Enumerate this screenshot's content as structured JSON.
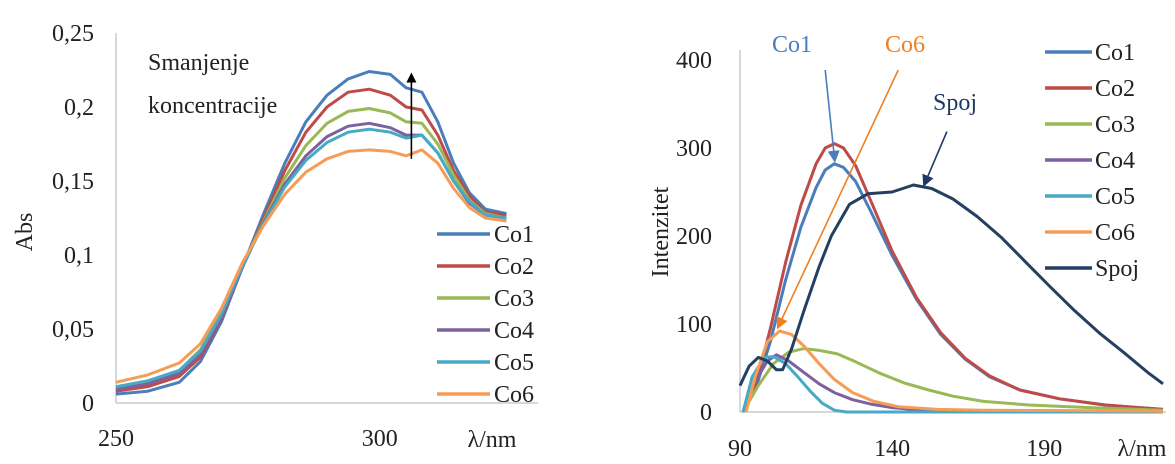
{
  "chart_data": [
    {
      "type": "line",
      "title": "",
      "xlabel": "λ/nm",
      "ylabel": "Abs",
      "xlim": [
        250,
        330
      ],
      "ylim": [
        0,
        0.25
      ],
      "x_ticks": [
        250,
        300
      ],
      "x_tick_labels": [
        "250",
        "300"
      ],
      "y_ticks": [
        0,
        0.05,
        0.1,
        0.15,
        0.2,
        0.25
      ],
      "y_tick_labels": [
        "0",
        "0,05",
        "0,1",
        "0,15",
        "0,2",
        "0,25"
      ],
      "grid": false,
      "legend": "bottom-right",
      "annotations": [
        {
          "text": "Smanjenje"
        },
        {
          "text": "koncentracije"
        }
      ],
      "arrow": {
        "x": 306,
        "y_from": 0.165,
        "y_to": 0.224
      },
      "series": [
        {
          "name": "Co1",
          "color": "#4a7ebb",
          "points": [
            [
              250,
              0.006
            ],
            [
              256,
              0.008
            ],
            [
              262,
              0.014
            ],
            [
              266,
              0.028
            ],
            [
              270,
              0.055
            ],
            [
              274,
              0.092
            ],
            [
              278,
              0.128
            ],
            [
              282,
              0.162
            ],
            [
              286,
              0.19
            ],
            [
              290,
              0.208
            ],
            [
              294,
              0.219
            ],
            [
              298,
              0.224
            ],
            [
              302,
              0.222
            ],
            [
              305,
              0.213
            ],
            [
              308,
              0.21
            ],
            [
              311,
              0.19
            ],
            [
              314,
              0.162
            ],
            [
              317,
              0.142
            ],
            [
              320,
              0.131
            ],
            [
              324,
              0.128
            ]
          ]
        },
        {
          "name": "Co2",
          "color": "#be4b48",
          "points": [
            [
              250,
              0.008
            ],
            [
              256,
              0.011
            ],
            [
              262,
              0.018
            ],
            [
              266,
              0.031
            ],
            [
              270,
              0.057
            ],
            [
              274,
              0.092
            ],
            [
              278,
              0.125
            ],
            [
              282,
              0.157
            ],
            [
              286,
              0.183
            ],
            [
              290,
              0.2
            ],
            [
              294,
              0.21
            ],
            [
              298,
              0.212
            ],
            [
              302,
              0.208
            ],
            [
              305,
              0.2
            ],
            [
              308,
              0.198
            ],
            [
              311,
              0.181
            ],
            [
              314,
              0.157
            ],
            [
              317,
              0.14
            ],
            [
              320,
              0.129
            ],
            [
              324,
              0.127
            ]
          ]
        },
        {
          "name": "Co3",
          "color": "#98b954",
          "points": [
            [
              250,
              0.01
            ],
            [
              256,
              0.014
            ],
            [
              262,
              0.022
            ],
            [
              266,
              0.036
            ],
            [
              270,
              0.061
            ],
            [
              274,
              0.093
            ],
            [
              278,
              0.123
            ],
            [
              282,
              0.152
            ],
            [
              286,
              0.174
            ],
            [
              290,
              0.189
            ],
            [
              294,
              0.197
            ],
            [
              298,
              0.199
            ],
            [
              302,
              0.196
            ],
            [
              305,
              0.19
            ],
            [
              308,
              0.189
            ],
            [
              311,
              0.175
            ],
            [
              314,
              0.154
            ],
            [
              317,
              0.137
            ],
            [
              320,
              0.128
            ],
            [
              324,
              0.125
            ]
          ]
        },
        {
          "name": "Co4",
          "color": "#7d60a0",
          "points": [
            [
              250,
              0.009
            ],
            [
              256,
              0.013
            ],
            [
              262,
              0.02
            ],
            [
              266,
              0.033
            ],
            [
              270,
              0.058
            ],
            [
              274,
              0.092
            ],
            [
              278,
              0.122
            ],
            [
              282,
              0.148
            ],
            [
              286,
              0.167
            ],
            [
              290,
              0.18
            ],
            [
              294,
              0.187
            ],
            [
              298,
              0.189
            ],
            [
              302,
              0.186
            ],
            [
              305,
              0.181
            ],
            [
              308,
              0.181
            ],
            [
              311,
              0.169
            ],
            [
              314,
              0.15
            ],
            [
              317,
              0.135
            ],
            [
              320,
              0.127
            ],
            [
              324,
              0.125
            ]
          ]
        },
        {
          "name": "Co5",
          "color": "#46aac5",
          "points": [
            [
              250,
              0.011
            ],
            [
              256,
              0.015
            ],
            [
              262,
              0.022
            ],
            [
              266,
              0.035
            ],
            [
              270,
              0.06
            ],
            [
              274,
              0.093
            ],
            [
              278,
              0.121
            ],
            [
              282,
              0.146
            ],
            [
              286,
              0.164
            ],
            [
              290,
              0.176
            ],
            [
              294,
              0.183
            ],
            [
              298,
              0.185
            ],
            [
              302,
              0.183
            ],
            [
              305,
              0.179
            ],
            [
              308,
              0.181
            ],
            [
              311,
              0.169
            ],
            [
              314,
              0.15
            ],
            [
              317,
              0.136
            ],
            [
              320,
              0.127
            ],
            [
              324,
              0.125
            ]
          ]
        },
        {
          "name": "Co6",
          "color": "#f59d56",
          "points": [
            [
              250,
              0.014
            ],
            [
              256,
              0.019
            ],
            [
              262,
              0.027
            ],
            [
              266,
              0.04
            ],
            [
              270,
              0.064
            ],
            [
              274,
              0.095
            ],
            [
              278,
              0.12
            ],
            [
              282,
              0.141
            ],
            [
              286,
              0.156
            ],
            [
              290,
              0.165
            ],
            [
              294,
              0.17
            ],
            [
              298,
              0.171
            ],
            [
              302,
              0.17
            ],
            [
              305,
              0.167
            ],
            [
              308,
              0.171
            ],
            [
              311,
              0.162
            ],
            [
              314,
              0.145
            ],
            [
              317,
              0.132
            ],
            [
              320,
              0.125
            ],
            [
              324,
              0.123
            ]
          ]
        }
      ]
    },
    {
      "type": "line",
      "title": "",
      "xlabel": "λ/nm",
      "ylabel": "Intenzitet",
      "xlim": [
        90,
        230
      ],
      "ylim": [
        0,
        400
      ],
      "x_ticks": [
        90,
        140,
        190
      ],
      "x_tick_labels": [
        "90",
        "140",
        "190"
      ],
      "y_ticks": [
        0,
        100,
        200,
        300,
        400
      ],
      "y_tick_labels": [
        "0",
        "100",
        "200",
        "300",
        "400"
      ],
      "grid": false,
      "legend": "right",
      "annotations": [
        {
          "text": "Co1",
          "color": "#4a7ebb",
          "arrow_from": [
            118,
            400
          ],
          "arrow_to": [
            121,
            290
          ]
        },
        {
          "text": "Co6",
          "color": "#f07f22",
          "arrow_from": [
            142,
            400
          ],
          "arrow_to": [
            103,
            100
          ]
        },
        {
          "text": "Spoj",
          "color": "#1f3864",
          "arrow_from": [
            158,
            330
          ],
          "arrow_to": [
            151,
            262
          ]
        }
      ],
      "series": [
        {
          "name": "Co1",
          "color": "#4a7ebb",
          "points": [
            [
              91,
              0
            ],
            [
              95,
              25
            ],
            [
              100,
              80
            ],
            [
              105,
              150
            ],
            [
              110,
              210
            ],
            [
              115,
              255
            ],
            [
              118,
              275
            ],
            [
              121,
              282
            ],
            [
              124,
              278
            ],
            [
              128,
              262
            ],
            [
              133,
              228
            ],
            [
              140,
              178
            ],
            [
              148,
              128
            ],
            [
              156,
              88
            ],
            [
              164,
              60
            ],
            [
              172,
              40
            ],
            [
              182,
              25
            ],
            [
              195,
              15
            ],
            [
              210,
              8
            ],
            [
              229,
              3
            ]
          ]
        },
        {
          "name": "Co2",
          "color": "#be4b48",
          "points": [
            [
              91,
              0
            ],
            [
              95,
              28
            ],
            [
              100,
              95
            ],
            [
              105,
              170
            ],
            [
              110,
              235
            ],
            [
              115,
              282
            ],
            [
              118,
              300
            ],
            [
              121,
              305
            ],
            [
              124,
              300
            ],
            [
              128,
              280
            ],
            [
              133,
              240
            ],
            [
              140,
              183
            ],
            [
              148,
              130
            ],
            [
              156,
              90
            ],
            [
              164,
              61
            ],
            [
              172,
              41
            ],
            [
              182,
              25
            ],
            [
              195,
              15
            ],
            [
              210,
              8
            ],
            [
              229,
              3
            ]
          ]
        },
        {
          "name": "Co3",
          "color": "#98b954",
          "points": [
            [
              91,
              0
            ],
            [
              96,
              30
            ],
            [
              101,
              55
            ],
            [
              106,
              68
            ],
            [
              111,
              72
            ],
            [
              116,
              70
            ],
            [
              122,
              66
            ],
            [
              128,
              57
            ],
            [
              136,
              44
            ],
            [
              144,
              33
            ],
            [
              152,
              25
            ],
            [
              160,
              18
            ],
            [
              170,
              12
            ],
            [
              185,
              8
            ],
            [
              205,
              5
            ],
            [
              229,
              2
            ]
          ]
        },
        {
          "name": "Co4",
          "color": "#7d60a0",
          "points": [
            [
              91,
              0
            ],
            [
              95,
              35
            ],
            [
              99,
              58
            ],
            [
              102,
              65
            ],
            [
              106,
              58
            ],
            [
              111,
              45
            ],
            [
              116,
              32
            ],
            [
              121,
              22
            ],
            [
              127,
              14
            ],
            [
              133,
              9
            ],
            [
              140,
              5
            ],
            [
              150,
              2
            ],
            [
              165,
              1
            ],
            [
              229,
              0
            ]
          ]
        },
        {
          "name": "Co5",
          "color": "#46aac5",
          "points": [
            [
              91,
              0
            ],
            [
              94,
              40
            ],
            [
              98,
              62
            ],
            [
              101,
              63
            ],
            [
              105,
              55
            ],
            [
              109,
              40
            ],
            [
              113,
              24
            ],
            [
              117,
              10
            ],
            [
              121,
              2
            ],
            [
              125,
              0
            ],
            [
              229,
              0
            ]
          ]
        },
        {
          "name": "Co6",
          "color": "#f59d56",
          "points": [
            [
              92,
              0
            ],
            [
              95,
              40
            ],
            [
              99,
              80
            ],
            [
              103,
              92
            ],
            [
              107,
              88
            ],
            [
              111,
              75
            ],
            [
              116,
              55
            ],
            [
              121,
              37
            ],
            [
              127,
              22
            ],
            [
              134,
              12
            ],
            [
              142,
              6
            ],
            [
              155,
              3
            ],
            [
              170,
              2
            ],
            [
              229,
              1
            ]
          ]
        },
        {
          "name": "Spoj",
          "color": "#243f60",
          "points": [
            [
              90,
              30
            ],
            [
              93,
              52
            ],
            [
              96,
              62
            ],
            [
              99,
              58
            ],
            [
              102,
              48
            ],
            [
              104,
              48
            ],
            [
              107,
              72
            ],
            [
              111,
              115
            ],
            [
              116,
              165
            ],
            [
              120,
              200
            ],
            [
              126,
              236
            ],
            [
              132,
              248
            ],
            [
              140,
              250
            ],
            [
              147,
              258
            ],
            [
              153,
              254
            ],
            [
              160,
              242
            ],
            [
              168,
              222
            ],
            [
              176,
              198
            ],
            [
              184,
              170
            ],
            [
              192,
              142
            ],
            [
              200,
              115
            ],
            [
              208,
              90
            ],
            [
              216,
              68
            ],
            [
              224,
              45
            ],
            [
              229,
              32
            ]
          ]
        }
      ]
    }
  ]
}
